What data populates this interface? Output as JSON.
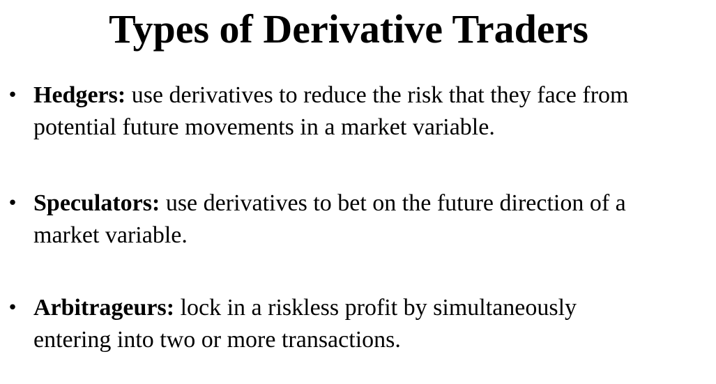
{
  "slide": {
    "title": "Types of Derivative Traders",
    "bullet_symbol": "•",
    "bullets": [
      {
        "term": "Hedgers:",
        "line1": " use derivatives to reduce the risk that they face from",
        "line2": "potential future movements in a market variable."
      },
      {
        "term": "Speculators:",
        "line1": " use derivatives to bet on the future direction of a",
        "line2": "market variable."
      },
      {
        "term": "Arbitrageurs:",
        "line1": " lock in a riskless profit by simultaneously",
        "line2": "entering into two or more transactions."
      }
    ]
  }
}
